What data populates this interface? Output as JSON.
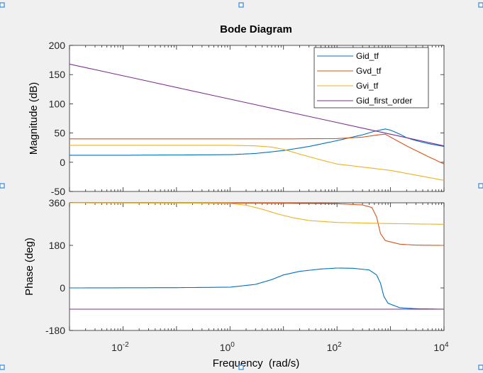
{
  "chart_data": {
    "type": "line",
    "title": "Bode Diagram",
    "xlabel": "Frequency  (rad/s)",
    "xscale": "log",
    "xlim": [
      0.001,
      10000
    ],
    "x_tick_labels": [
      {
        "base": "10",
        "exp": "-2"
      },
      {
        "base": "10",
        "exp": "0"
      },
      {
        "base": "10",
        "exp": "2"
      },
      {
        "base": "10",
        "exp": "4"
      }
    ],
    "legend": {
      "placement": "top-right",
      "entries": [
        "Gid_tf",
        "Gvd_tf",
        "Gvi_tf",
        "Gid_first_order"
      ]
    },
    "grid": false,
    "panels": [
      {
        "name": "magnitude",
        "ylabel": "Magnitude (dB)",
        "ylim": [
          -50,
          200
        ],
        "yticks": [
          -50,
          0,
          50,
          100,
          150,
          200
        ],
        "series": [
          {
            "name": "Gid_tf",
            "color": "#0072bd",
            "points": [
              [
                0.001,
                12
              ],
              [
                0.01,
                12
              ],
              [
                0.1,
                12.5
              ],
              [
                1,
                13
              ],
              [
                3,
                15
              ],
              [
                10,
                20
              ],
              [
                30,
                27
              ],
              [
                100,
                37
              ],
              [
                300,
                47
              ],
              [
                500,
                53
              ],
              [
                800,
                57
              ],
              [
                1000,
                55
              ],
              [
                1500,
                48
              ],
              [
                2000,
                42
              ],
              [
                3000,
                37
              ],
              [
                5000,
                32
              ],
              [
                10000,
                27
              ]
            ]
          },
          {
            "name": "Gvd_tf",
            "color": "#d95319",
            "points": [
              [
                0.001,
                40
              ],
              [
                0.01,
                40
              ],
              [
                0.1,
                40
              ],
              [
                1,
                40
              ],
              [
                10,
                40
              ],
              [
                100,
                40.5
              ],
              [
                300,
                43
              ],
              [
                600,
                47
              ],
              [
                800,
                48
              ],
              [
                1000,
                43
              ],
              [
                2000,
                28
              ],
              [
                5000,
                10
              ],
              [
                10000,
                -3
              ]
            ]
          },
          {
            "name": "Gvi_tf",
            "color": "#edb120",
            "points": [
              [
                0.001,
                29
              ],
              [
                0.01,
                29
              ],
              [
                0.1,
                29
              ],
              [
                1,
                29
              ],
              [
                3,
                28
              ],
              [
                6,
                26
              ],
              [
                10,
                22
              ],
              [
                20,
                14
              ],
              [
                50,
                4
              ],
              [
                100,
                -3
              ],
              [
                1000,
                -14
              ],
              [
                10000,
                -31
              ]
            ]
          },
          {
            "name": "Gid_first_order",
            "color": "#7e2f8e",
            "points": [
              [
                0.001,
                168
              ],
              [
                10000,
                28
              ]
            ]
          }
        ]
      },
      {
        "name": "phase",
        "ylabel": "Phase (deg)",
        "ylim": [
          -180,
          360
        ],
        "yticks": [
          -180,
          0,
          180,
          360
        ],
        "series": [
          {
            "name": "Gid_tf",
            "color": "#0072bd",
            "points": [
              [
                0.001,
                0
              ],
              [
                0.1,
                1
              ],
              [
                1,
                3
              ],
              [
                3,
                15
              ],
              [
                6,
                35
              ],
              [
                10,
                55
              ],
              [
                20,
                70
              ],
              [
                50,
                80
              ],
              [
                100,
                84
              ],
              [
                200,
                83
              ],
              [
                400,
                76
              ],
              [
                550,
                55
              ],
              [
                650,
                20
              ],
              [
                750,
                -35
              ],
              [
                900,
                -65
              ],
              [
                1500,
                -84
              ],
              [
                3000,
                -88
              ],
              [
                10000,
                -90
              ]
            ]
          },
          {
            "name": "Gvd_tf",
            "color": "#d95319",
            "points": [
              [
                0.001,
                360
              ],
              [
                1,
                359
              ],
              [
                10,
                358
              ],
              [
                100,
                356
              ],
              [
                300,
                351
              ],
              [
                450,
                340
              ],
              [
                550,
                300
              ],
              [
                650,
                230
              ],
              [
                800,
                200
              ],
              [
                1500,
                185
              ],
              [
                3000,
                181
              ],
              [
                10000,
                180
              ]
            ]
          },
          {
            "name": "Gvi_tf",
            "color": "#edb120",
            "points": [
              [
                0.001,
                360
              ],
              [
                0.1,
                359
              ],
              [
                1,
                357
              ],
              [
                2,
                350
              ],
              [
                4,
                333
              ],
              [
                8,
                312
              ],
              [
                15,
                297
              ],
              [
                30,
                285
              ],
              [
                100,
                277
              ],
              [
                1000,
                272
              ],
              [
                10000,
                269
              ]
            ]
          },
          {
            "name": "Gid_first_order",
            "color": "#7e2f8e",
            "points": [
              [
                0.001,
                -90
              ],
              [
                10000,
                -90
              ]
            ]
          }
        ]
      }
    ]
  }
}
